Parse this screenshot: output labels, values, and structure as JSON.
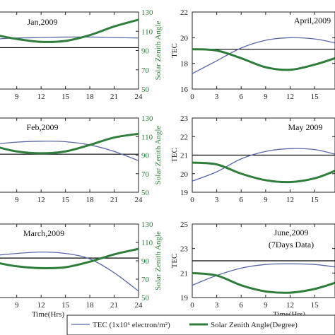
{
  "colors": {
    "tec": "#5a67a8",
    "sza": "#2e7d3a",
    "ref": "#000000",
    "frame": "#222222"
  },
  "legend": {
    "tec_label": "TEC (1x10⁶ electron/m²)",
    "sza_label": "Solar Zenith Angle(Degree)"
  },
  "chart_data": [
    {
      "type": "line",
      "title": "Jan,2009",
      "x_ticks": [
        "9",
        "12",
        "15",
        "18",
        "21",
        "24"
      ],
      "xlim": [
        6.5,
        24
      ],
      "xlabel": "",
      "ylabel_left": "",
      "ylabel_right": "Solar Zenith Angle",
      "y_right_ticks": [
        "50",
        "70",
        "90",
        "110",
        "130"
      ],
      "ylim_right": [
        50,
        130
      ],
      "reference_line_right": 93,
      "series": [
        {
          "axis": "right",
          "role": "tec",
          "x": [
            6.5,
            9,
            12,
            15,
            18,
            21,
            24
          ],
          "y": [
            102,
            103,
            103.5,
            104,
            104,
            103.5,
            103
          ]
        },
        {
          "axis": "right",
          "role": "sza",
          "x": [
            6.5,
            9,
            12,
            15,
            18,
            21,
            24
          ],
          "y": [
            106,
            102,
            99,
            100,
            106,
            115,
            122
          ]
        }
      ]
    },
    {
      "type": "line",
      "title": "April,2009",
      "x_ticks": [
        "0",
        "3",
        "6",
        "9",
        "12",
        "15"
      ],
      "xlim": [
        0,
        17.5
      ],
      "xlabel": "",
      "ylabel_left": "TEC",
      "ylabel_right": "",
      "y_left_ticks": [
        "16",
        "18",
        "20",
        "22"
      ],
      "ylim_left": [
        16,
        22
      ],
      "reference_line_left": 19.1,
      "series": [
        {
          "axis": "left",
          "role": "tec",
          "x": [
            0,
            3,
            6,
            9,
            12,
            15,
            17.5
          ],
          "y": [
            17.2,
            18.2,
            19.2,
            19.8,
            20,
            19.9,
            19.6
          ]
        },
        {
          "axis": "left",
          "role": "sza",
          "x": [
            0,
            3,
            6,
            9,
            12,
            15,
            17.5
          ],
          "y": [
            19.1,
            19.0,
            18.4,
            17.7,
            17.5,
            17.9,
            18.4
          ]
        }
      ]
    },
    {
      "type": "line",
      "title": "Feb,2009",
      "x_ticks": [
        "9",
        "12",
        "15",
        "18",
        "21",
        "24"
      ],
      "xlim": [
        6.5,
        24
      ],
      "xlabel": "",
      "ylabel_left": "",
      "ylabel_right": "Solar Zenith Angle",
      "y_right_ticks": [
        "50",
        "70",
        "90",
        "110",
        "130"
      ],
      "ylim_right": [
        50,
        130
      ],
      "reference_line_right": 91,
      "series": [
        {
          "axis": "right",
          "role": "tec",
          "x": [
            6.5,
            9,
            12,
            15,
            18,
            21,
            24
          ],
          "y": [
            102,
            104,
            105,
            104.5,
            101,
            94,
            84
          ]
        },
        {
          "axis": "right",
          "role": "sza",
          "x": [
            6.5,
            9,
            12,
            15,
            18,
            21,
            24
          ],
          "y": [
            99,
            94,
            92,
            94,
            101,
            109,
            113
          ]
        }
      ]
    },
    {
      "type": "line",
      "title": "May 2009",
      "x_ticks": [
        "0",
        "3",
        "6",
        "9",
        "12",
        "15"
      ],
      "xlim": [
        0,
        17.5
      ],
      "xlabel": "",
      "ylabel_left": "TEC",
      "ylabel_right": "",
      "y_left_ticks": [
        "19",
        "20",
        "21",
        "22",
        "23"
      ],
      "ylim_left": [
        19,
        23
      ],
      "reference_line_left": 21,
      "series": [
        {
          "axis": "left",
          "role": "tec",
          "x": [
            0,
            3,
            6,
            9,
            12,
            15,
            17.5
          ],
          "y": [
            19.6,
            20.1,
            20.8,
            21.2,
            21.35,
            21.3,
            21.05
          ]
        },
        {
          "axis": "left",
          "role": "sza",
          "x": [
            0,
            3,
            6,
            9,
            12,
            15,
            17.5
          ],
          "y": [
            20.6,
            20.5,
            20.0,
            19.65,
            19.55,
            19.75,
            20.15
          ]
        }
      ]
    },
    {
      "type": "line",
      "title": "March,2009",
      "x_ticks": [
        "9",
        "12",
        "15",
        "18",
        "21",
        "24"
      ],
      "xlim": [
        6.5,
        24
      ],
      "xlabel": "Time(Hrs)",
      "ylabel_left": "",
      "ylabel_right": "Solar Zenith Angle",
      "y_right_ticks": [
        "50",
        "70",
        "90",
        "110",
        "130"
      ],
      "ylim_right": [
        50,
        130
      ],
      "reference_line_right": 93,
      "series": [
        {
          "axis": "right",
          "role": "tec",
          "x": [
            6.5,
            9,
            12,
            15,
            18,
            21,
            24
          ],
          "y": [
            96,
            98,
            99.5,
            98,
            92,
            77,
            57
          ]
        },
        {
          "axis": "right",
          "role": "sza",
          "x": [
            6.5,
            9,
            12,
            15,
            18,
            21,
            24
          ],
          "y": [
            88,
            84,
            82,
            83,
            89,
            97,
            103
          ]
        }
      ]
    },
    {
      "type": "line",
      "title": "June,2009",
      "subtitle": "(7Days Data)",
      "x_ticks": [
        "0",
        "3",
        "6",
        "9",
        "12",
        "15"
      ],
      "xlim": [
        0,
        17.5
      ],
      "xlabel": "Time(Hrs)",
      "ylabel_left": "TEC",
      "ylabel_right": "",
      "y_left_ticks": [
        "19",
        "21",
        "23",
        "25"
      ],
      "ylim_left": [
        19,
        25
      ],
      "reference_line_left": 22,
      "series": [
        {
          "axis": "left",
          "role": "tec",
          "x": [
            0,
            3,
            6,
            9,
            12,
            15,
            17.5
          ],
          "y": [
            20.0,
            20.8,
            21.4,
            21.7,
            21.75,
            21.7,
            21.5
          ]
        },
        {
          "axis": "left",
          "role": "sza",
          "x": [
            0,
            3,
            6,
            9,
            12,
            15,
            17.5
          ],
          "y": [
            21.0,
            20.8,
            20.0,
            19.5,
            19.4,
            19.7,
            20.2
          ]
        }
      ]
    }
  ]
}
